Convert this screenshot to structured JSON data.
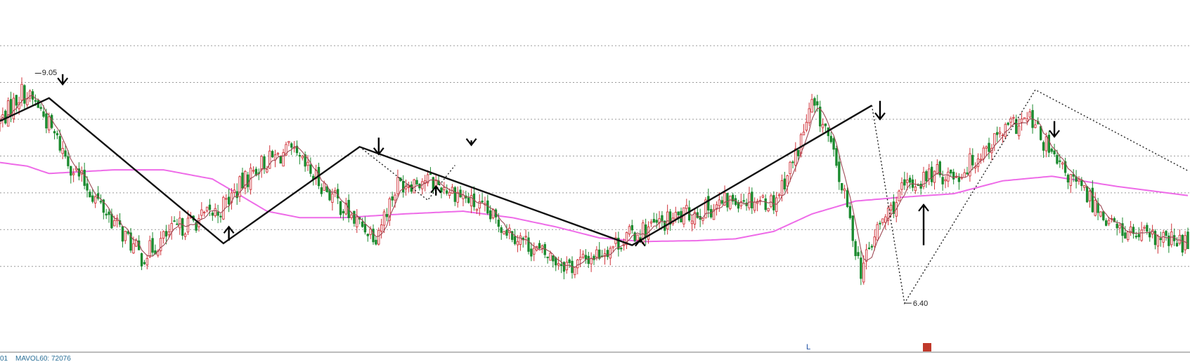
{
  "chart_data": {
    "type": "candlestick",
    "annotations": {
      "high_label": "9.05",
      "low_label": "6.40"
    },
    "footer": {
      "volume_label": "MAVOL60: 72076",
      "prefix": "01",
      "marker_letter": "L"
    },
    "ylim": [
      6.2,
      9.45
    ],
    "grid_levels": [
      9.35,
      8.95,
      8.55,
      8.15,
      7.75,
      7.35,
      6.95
    ],
    "colors": {
      "up": "#d0333a",
      "down": "#1b8a2e",
      "ma_short": "#9d4a55",
      "ma_long": "#ee6be8",
      "zigzag": "#111111",
      "dotted": "#222222",
      "arrow": "#000000",
      "grid": "#9a9a9a"
    },
    "candles_knots": [
      [
        0,
        8.52
      ],
      [
        8,
        8.85
      ],
      [
        14,
        8.7
      ],
      [
        26,
        8.05
      ],
      [
        40,
        7.5
      ],
      [
        52,
        7.05
      ],
      [
        64,
        7.35
      ],
      [
        80,
        7.55
      ],
      [
        95,
        8.05
      ],
      [
        106,
        8.2
      ],
      [
        118,
        7.85
      ],
      [
        130,
        7.45
      ],
      [
        138,
        7.3
      ],
      [
        146,
        7.85
      ],
      [
        156,
        7.9
      ],
      [
        168,
        7.75
      ],
      [
        182,
        7.45
      ],
      [
        198,
        7.1
      ],
      [
        210,
        6.95
      ],
      [
        220,
        7.1
      ],
      [
        232,
        7.3
      ],
      [
        246,
        7.45
      ],
      [
        262,
        7.6
      ],
      [
        272,
        7.7
      ],
      [
        284,
        7.65
      ],
      [
        292,
        8.15
      ],
      [
        298,
        8.7
      ],
      [
        303,
        8.45
      ],
      [
        310,
        7.7
      ],
      [
        316,
        6.9
      ],
      [
        322,
        7.35
      ],
      [
        332,
        7.8
      ],
      [
        342,
        7.95
      ],
      [
        352,
        7.95
      ],
      [
        362,
        8.25
      ],
      [
        370,
        8.45
      ],
      [
        378,
        8.55
      ],
      [
        388,
        8.05
      ],
      [
        398,
        7.75
      ],
      [
        410,
        7.35
      ],
      [
        422,
        7.25
      ],
      [
        436,
        7.2
      ]
    ],
    "ma_long_knots": [
      [
        0,
        8.08
      ],
      [
        10,
        8.04
      ],
      [
        18,
        7.96
      ],
      [
        30,
        7.98
      ],
      [
        42,
        8.0
      ],
      [
        60,
        8.0
      ],
      [
        78,
        7.9
      ],
      [
        98,
        7.55
      ],
      [
        110,
        7.48
      ],
      [
        126,
        7.48
      ],
      [
        148,
        7.52
      ],
      [
        170,
        7.55
      ],
      [
        188,
        7.48
      ],
      [
        204,
        7.38
      ],
      [
        220,
        7.26
      ],
      [
        236,
        7.22
      ],
      [
        256,
        7.23
      ],
      [
        270,
        7.25
      ],
      [
        284,
        7.33
      ],
      [
        298,
        7.52
      ],
      [
        314,
        7.66
      ],
      [
        330,
        7.7
      ],
      [
        350,
        7.74
      ],
      [
        368,
        7.88
      ],
      [
        386,
        7.93
      ],
      [
        410,
        7.82
      ],
      [
        436,
        7.72
      ]
    ],
    "zigzag": [
      [
        0,
        8.53
      ],
      [
        18,
        8.78
      ],
      [
        82,
        7.2
      ],
      [
        132,
        8.25
      ],
      [
        232,
        7.18
      ],
      [
        320,
        8.7
      ]
    ],
    "dotted_lines": [
      [
        [
          132,
          8.25
        ],
        [
          157,
          7.67
        ],
        [
          167,
          8.05
        ]
      ],
      [
        [
          320,
          8.7
        ],
        [
          332,
          6.55
        ],
        [
          380,
          8.87
        ],
        [
          436,
          7.99
        ]
      ]
    ],
    "arrows": [
      {
        "x": 23,
        "dir": "down",
        "from": 9.04,
        "to": 8.93
      },
      {
        "x": 84,
        "dir": "up",
        "from": 7.23,
        "to": 7.38
      },
      {
        "x": 139,
        "dir": "down",
        "from": 8.35,
        "to": 8.17
      },
      {
        "x": 160,
        "dir": "up",
        "from": 7.72,
        "to": 7.82
      },
      {
        "x": 173,
        "dir": "down",
        "from": 8.32,
        "to": 8.27
      },
      {
        "x": 235,
        "dir": "up",
        "from": 7.21,
        "to": 7.24
      },
      {
        "x": 323,
        "dir": "down",
        "from": 8.75,
        "to": 8.55
      },
      {
        "x": 339,
        "dir": "up",
        "from": 7.18,
        "to": 7.62
      },
      {
        "x": 387,
        "dir": "down",
        "from": 8.53,
        "to": 8.36
      }
    ]
  }
}
